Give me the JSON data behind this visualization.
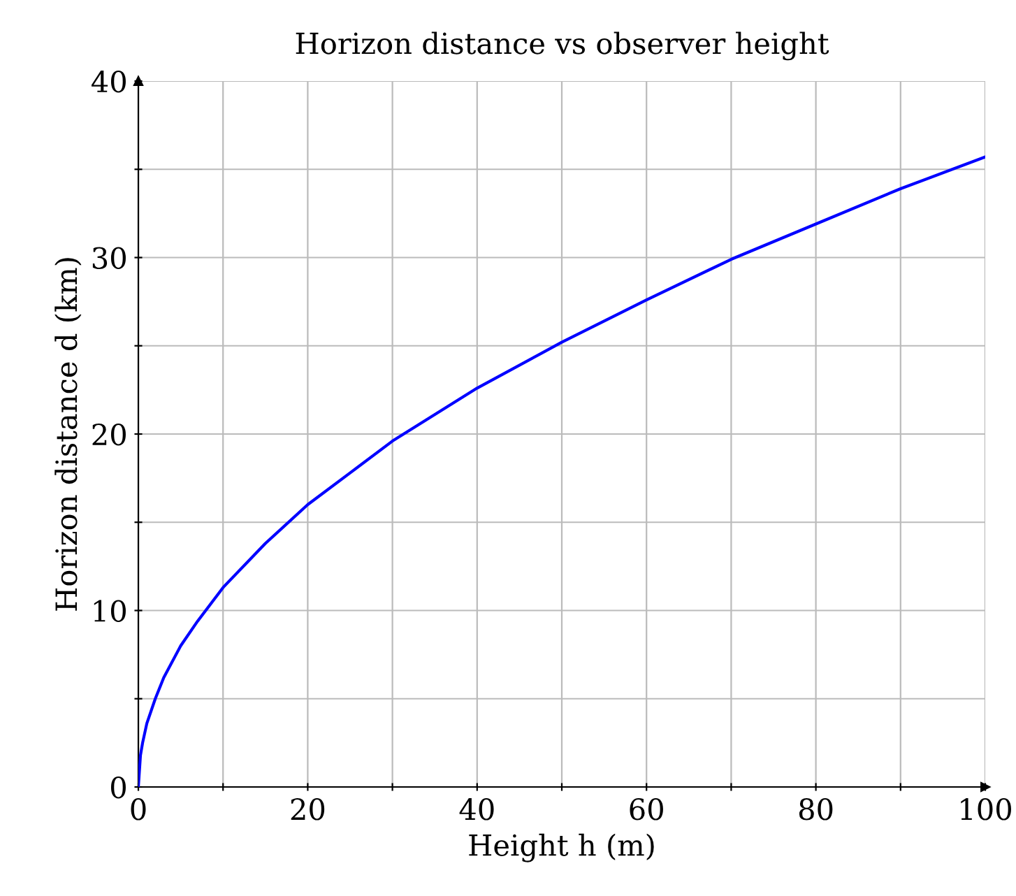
{
  "chart_data": {
    "type": "line",
    "title": "Horizon distance vs observer height",
    "xlabel": "Height h (m)",
    "ylabel": "Horizon distance d (km)",
    "x": [
      0,
      0.25,
      0.5,
      1,
      2,
      3,
      5,
      7,
      10,
      15,
      20,
      25,
      30,
      40,
      50,
      60,
      70,
      80,
      90,
      100
    ],
    "series": [
      {
        "color": "#0000ff",
        "values": [
          0,
          1.8,
          2.5,
          3.6,
          5.0,
          6.2,
          8.0,
          9.4,
          11.3,
          13.8,
          16.0,
          17.8,
          19.6,
          22.6,
          25.2,
          27.6,
          29.9,
          31.9,
          33.9,
          35.7
        ]
      }
    ],
    "xlim": [
      0,
      100
    ],
    "ylim": [
      0,
      40
    ],
    "xticks": [
      0,
      {
        "value": 10,
        "label": null
      },
      20,
      {
        "value": 30,
        "label": null
      },
      40,
      {
        "value": 50,
        "label": null
      },
      60,
      {
        "value": 70,
        "label": null
      },
      80,
      {
        "value": 90,
        "label": null
      },
      100
    ],
    "yticks": [
      0,
      {
        "value": 5,
        "label": null
      },
      10,
      {
        "value": 15,
        "label": null
      },
      20,
      {
        "value": 25,
        "label": null
      },
      30,
      {
        "value": 35,
        "label": null
      },
      40
    ],
    "grid": true,
    "marker": "none",
    "line_style": "solid"
  }
}
